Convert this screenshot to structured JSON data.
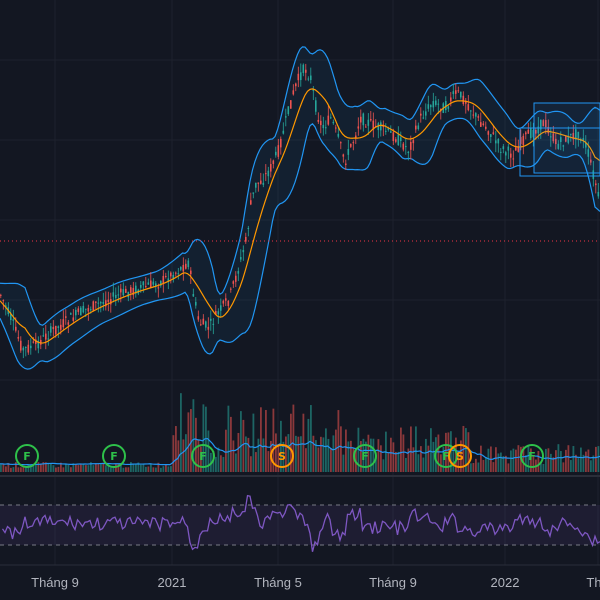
{
  "chart_data": {
    "type": "candlestick",
    "x_ticks": [
      "Tháng 9",
      "2021",
      "Tháng 5",
      "Tháng 9",
      "2022",
      "Th"
    ],
    "price_panel": {
      "indicators": [
        "Bollinger Bands",
        "Moving Average"
      ],
      "horizontal_line": "dotted red level",
      "price_path": [
        [
          0,
          295
        ],
        [
          10,
          318
        ],
        [
          22,
          350
        ],
        [
          35,
          345
        ],
        [
          50,
          332
        ],
        [
          65,
          322
        ],
        [
          80,
          312
        ],
        [
          100,
          303
        ],
        [
          120,
          294
        ],
        [
          140,
          288
        ],
        [
          160,
          282
        ],
        [
          178,
          270
        ],
        [
          188,
          262
        ],
        [
          192,
          290
        ],
        [
          198,
          322
        ],
        [
          208,
          328
        ],
        [
          218,
          312
        ],
        [
          228,
          300
        ],
        [
          235,
          278
        ],
        [
          240,
          260
        ],
        [
          246,
          238
        ],
        [
          250,
          205
        ],
        [
          255,
          185
        ],
        [
          262,
          180
        ],
        [
          270,
          168
        ],
        [
          278,
          150
        ],
        [
          286,
          118
        ],
        [
          292,
          95
        ],
        [
          298,
          78
        ],
        [
          304,
          68
        ],
        [
          310,
          78
        ],
        [
          316,
          112
        ],
        [
          322,
          128
        ],
        [
          330,
          118
        ],
        [
          338,
          140
        ],
        [
          344,
          162
        ],
        [
          352,
          142
        ],
        [
          360,
          118
        ],
        [
          372,
          125
        ],
        [
          384,
          130
        ],
        [
          396,
          138
        ],
        [
          408,
          150
        ],
        [
          420,
          118
        ],
        [
          432,
          102
        ],
        [
          444,
          108
        ],
        [
          456,
          92
        ],
        [
          466,
          102
        ],
        [
          476,
          118
        ],
        [
          488,
          130
        ],
        [
          500,
          148
        ],
        [
          512,
          155
        ],
        [
          522,
          140
        ],
        [
          532,
          132
        ],
        [
          544,
          122
        ],
        [
          556,
          145
        ],
        [
          566,
          140
        ],
        [
          578,
          132
        ],
        [
          586,
          148
        ],
        [
          594,
          180
        ],
        [
          600,
          208
        ]
      ],
      "rectangles": [
        {
          "from": 520,
          "to": 600,
          "top_price": "upper",
          "bottom_price": "lower"
        }
      ]
    },
    "volume_panel": {
      "markers": [
        {
          "label": "F",
          "color": "#2ec14a"
        },
        {
          "label": "F",
          "color": "#2ec14a"
        },
        {
          "label": "F",
          "color": "#2ec14a"
        },
        {
          "label": "S",
          "color": "#ff9800"
        },
        {
          "label": "F",
          "color": "#2ec14a"
        },
        {
          "label": "F",
          "color": "#2ec14a"
        },
        {
          "label": "S",
          "color": "#ff9800"
        },
        {
          "label": "F",
          "color": "#2ec14a"
        }
      ]
    },
    "oscillator_panel": {
      "name": "RSI",
      "levels": [
        "upper",
        "lower"
      ]
    }
  },
  "colors": {
    "background": "#131722",
    "up": "#26a69a",
    "down": "#ef5350",
    "bands": "#2196f3",
    "ma": "#ff9800",
    "rsi": "#7e57c2",
    "level_line": "#f23645",
    "grid": "#1e222d"
  }
}
